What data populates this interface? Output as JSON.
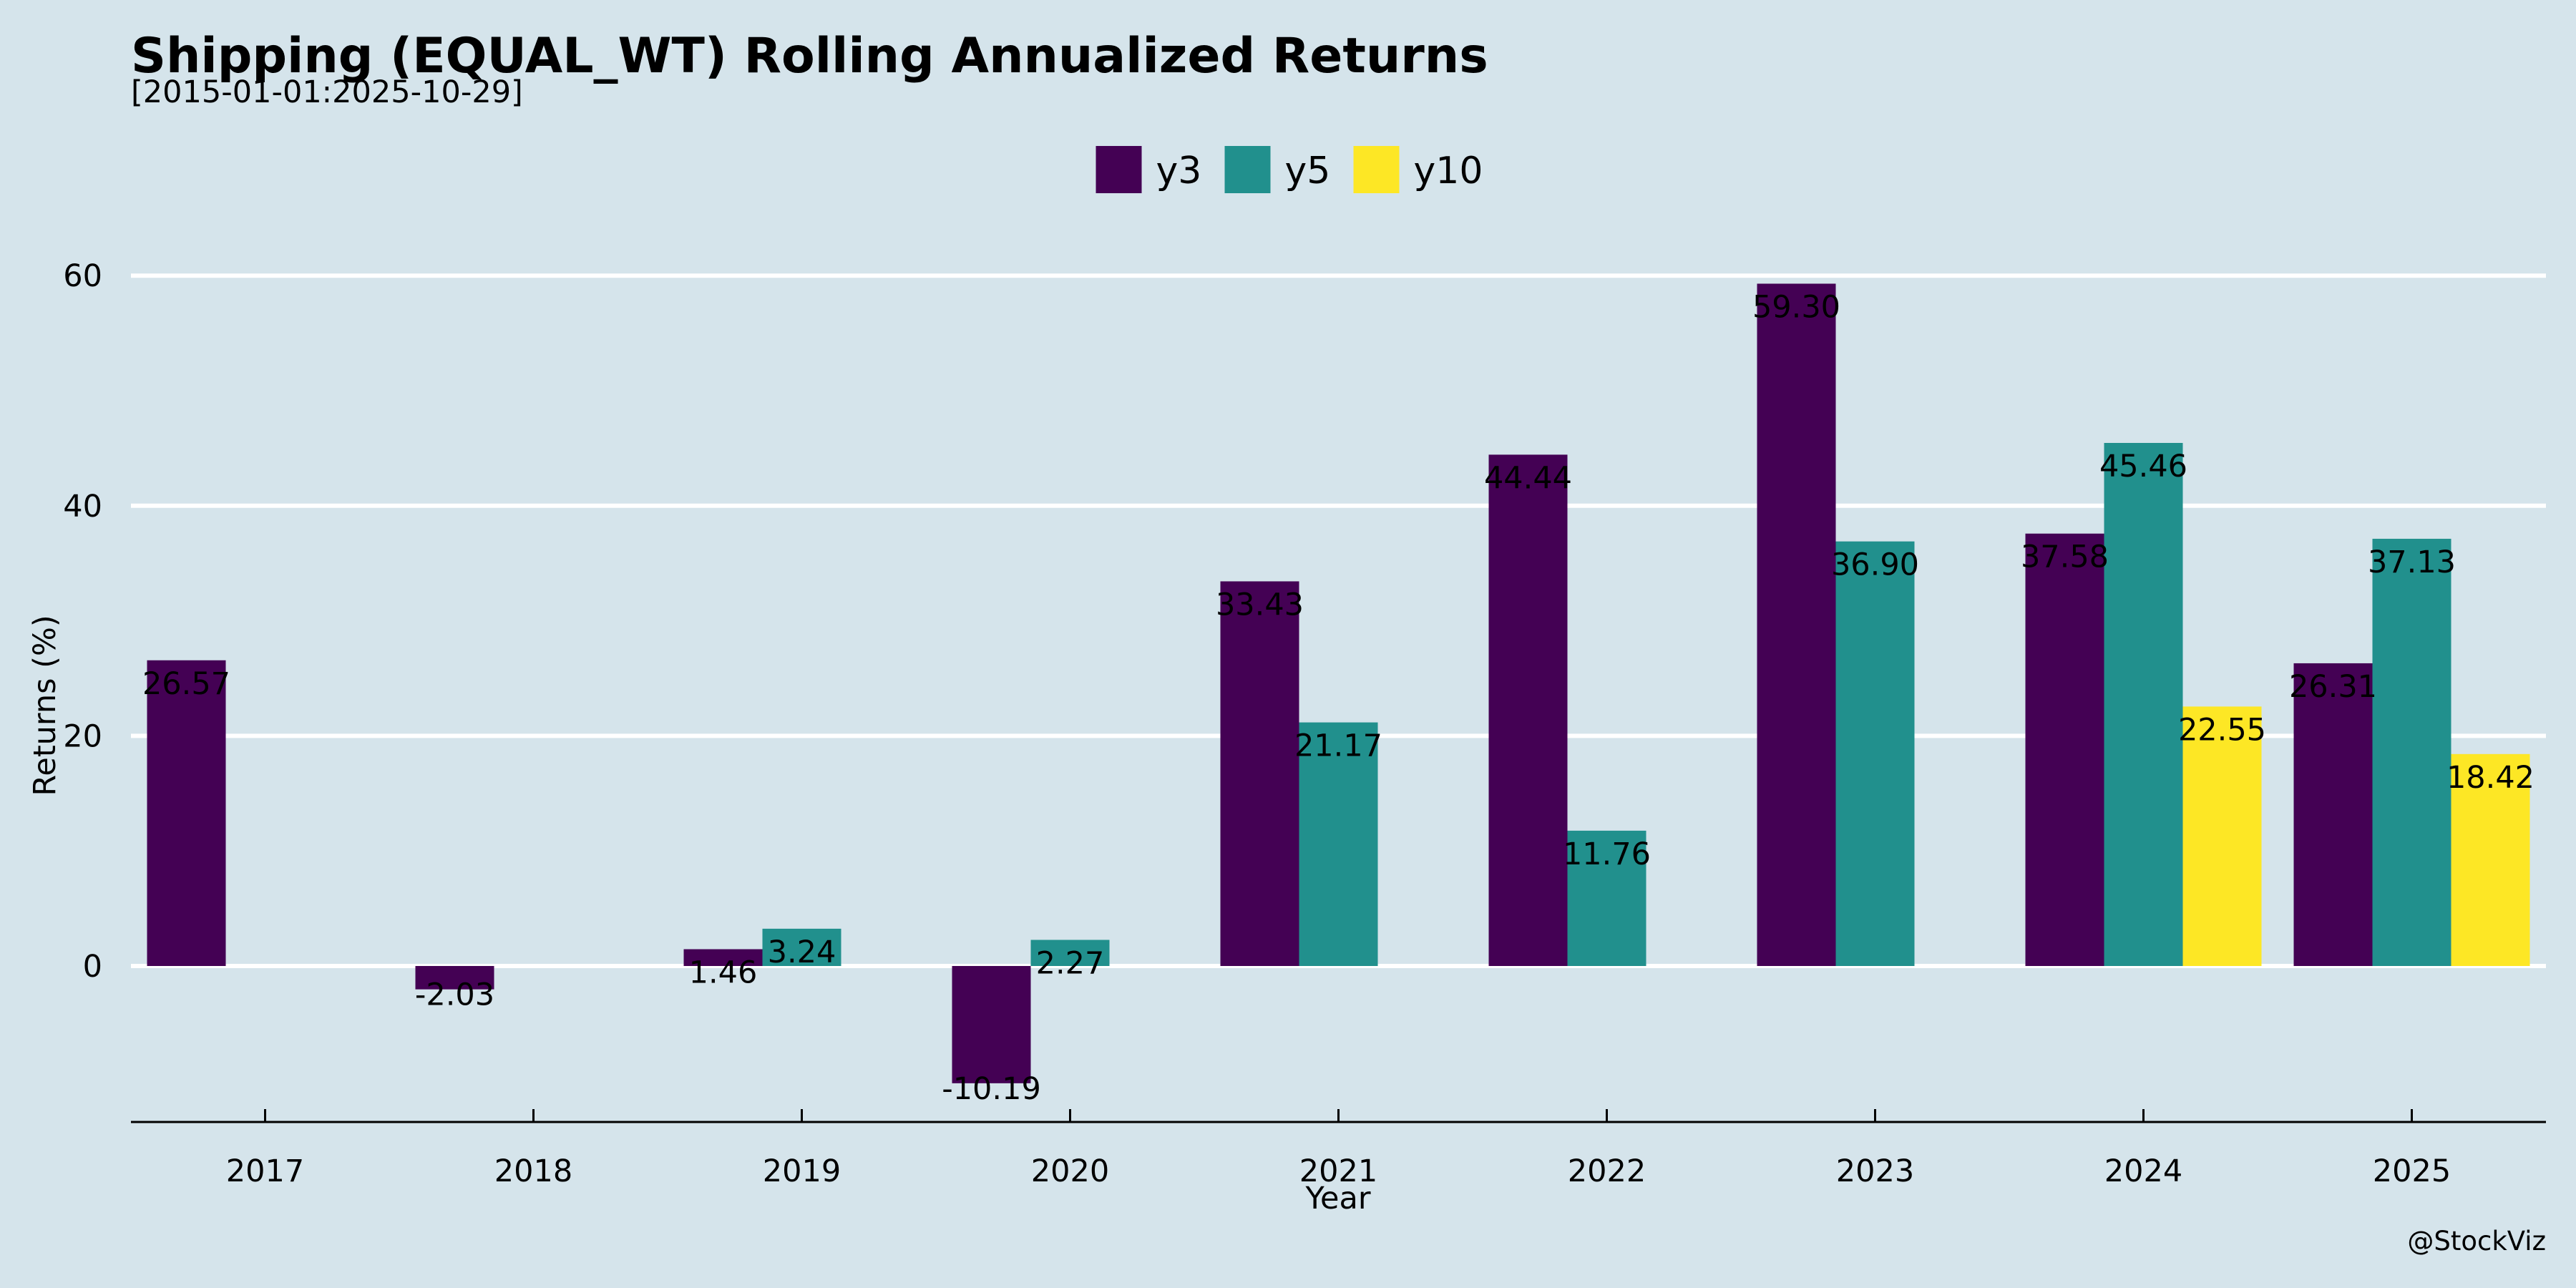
{
  "chart_data": {
    "type": "bar",
    "title": "Shipping (EQUAL_WT) Rolling Annualized Returns",
    "subtitle": "[2015-01-01:2025-10-29]",
    "xlabel": "Year",
    "ylabel": "Returns (%)",
    "ylim": [
      -13.5,
      63
    ],
    "yticks": [
      0,
      20,
      40,
      60
    ],
    "grid": true,
    "legend_position": "top-center",
    "categories": [
      "2017",
      "2018",
      "2019",
      "2020",
      "2021",
      "2022",
      "2023",
      "2024",
      "2025"
    ],
    "series": [
      {
        "name": "y3",
        "color": "#440154",
        "values": [
          26.57,
          -2.03,
          1.46,
          -10.19,
          33.43,
          44.44,
          59.3,
          37.58,
          26.31
        ],
        "labels": [
          "26.57",
          "-2.03",
          "1.46",
          "-10.19",
          "33.43",
          "44.44",
          "59.30",
          "37.58",
          "26.31"
        ]
      },
      {
        "name": "y5",
        "color": "#21908d",
        "values": [
          null,
          null,
          3.24,
          2.27,
          21.17,
          11.76,
          36.9,
          45.46,
          37.13
        ],
        "labels": [
          null,
          null,
          "3.24",
          "2.27",
          "21.17",
          "11.76",
          "36.90",
          "45.46",
          "37.13"
        ]
      },
      {
        "name": "y10",
        "color": "#fde725",
        "values": [
          null,
          null,
          null,
          null,
          null,
          null,
          null,
          22.55,
          18.42
        ],
        "labels": [
          null,
          null,
          null,
          null,
          null,
          null,
          null,
          "22.55",
          "18.42"
        ]
      }
    ],
    "watermark": "@StockViz"
  }
}
